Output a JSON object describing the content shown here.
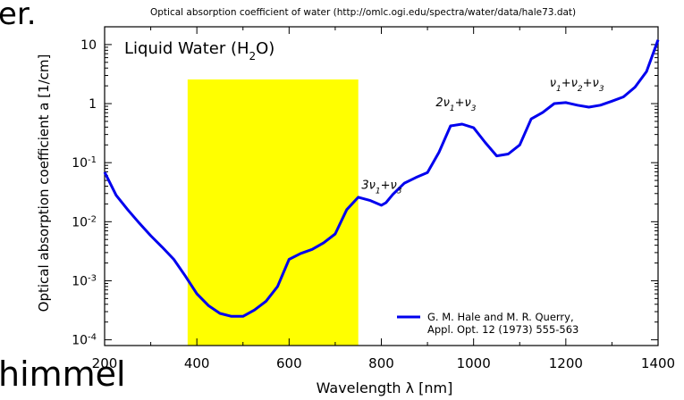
{
  "fragments": {
    "top": "er.",
    "bottom": "himmel"
  },
  "header": "Optical absorption coefficient of water (http://omlc.ogi.edu/spectra/water/data/hale73.dat)",
  "chart_data": {
    "type": "line",
    "title": "Liquid Water (H",
    "title_sub": "2",
    "title_end": "O)",
    "xlabel": "Wavelength λ [nm]",
    "ylabel": "Optical absorption coefficient a [1/cm]",
    "xlim": [
      200,
      1400
    ],
    "ylim": [
      8e-05,
      20
    ],
    "yscale": "log",
    "xticks": [
      200,
      400,
      600,
      800,
      1000,
      1200,
      1400
    ],
    "xtick_labels": [
      "200",
      "400",
      "600",
      "800",
      "1000",
      "1200",
      "1400"
    ],
    "yticks": [
      {
        "value": 10,
        "base": "10",
        "exp": ""
      },
      {
        "value": 1,
        "base": "1",
        "exp": ""
      },
      {
        "value": 0.1,
        "base": "10",
        "exp": "-1"
      },
      {
        "value": 0.01,
        "base": "10",
        "exp": "-2"
      },
      {
        "value": 0.001,
        "base": "10",
        "exp": "-3"
      },
      {
        "value": 0.0001,
        "base": "10",
        "exp": "-4"
      }
    ],
    "highlight": {
      "x_range": [
        380,
        750
      ],
      "color": "#ffff00"
    },
    "series": [
      {
        "name": "G. M. Hale and M. R. Querry,",
        "name_line2": "Appl. Opt. 12 (1973) 555-563",
        "color": "#0000ee",
        "x": [
          200,
          225,
          250,
          275,
          300,
          325,
          350,
          375,
          400,
          425,
          450,
          475,
          500,
          525,
          550,
          575,
          600,
          625,
          650,
          675,
          700,
          725,
          750,
          775,
          800,
          810,
          825,
          850,
          875,
          900,
          925,
          950,
          975,
          1000,
          1025,
          1050,
          1075,
          1100,
          1125,
          1150,
          1175,
          1200,
          1225,
          1250,
          1275,
          1300,
          1325,
          1350,
          1375,
          1400
        ],
        "y": [
          0.069,
          0.028,
          0.016,
          0.0095,
          0.0058,
          0.0037,
          0.0023,
          0.0012,
          0.0006,
          0.00038,
          0.00028,
          0.00025,
          0.00025,
          0.00032,
          0.00045,
          0.0008,
          0.0023,
          0.0029,
          0.0034,
          0.0044,
          0.0062,
          0.016,
          0.026,
          0.023,
          0.019,
          0.021,
          0.029,
          0.045,
          0.056,
          0.068,
          0.15,
          0.42,
          0.45,
          0.39,
          0.22,
          0.13,
          0.14,
          0.2,
          0.55,
          0.71,
          1.0,
          1.04,
          0.94,
          0.87,
          0.94,
          1.1,
          1.3,
          1.9,
          3.5,
          12
        ]
      }
    ],
    "annotations": [
      {
        "text": "3ν",
        "sub": "1",
        "rest": "+ν",
        "sub2": "3",
        "x": 757,
        "y": 0.036
      },
      {
        "text": "2ν",
        "sub": "1",
        "rest": "+ν",
        "sub2": "3",
        "x": 918,
        "y": 0.9
      },
      {
        "text": "ν",
        "sub": "1",
        "rest": "+ν",
        "sub2": "2",
        "tail": "+ν",
        "sub3": "3",
        "x": 1165,
        "y": 1.95
      }
    ],
    "legend_position": "bottom-right",
    "grid": false
  }
}
